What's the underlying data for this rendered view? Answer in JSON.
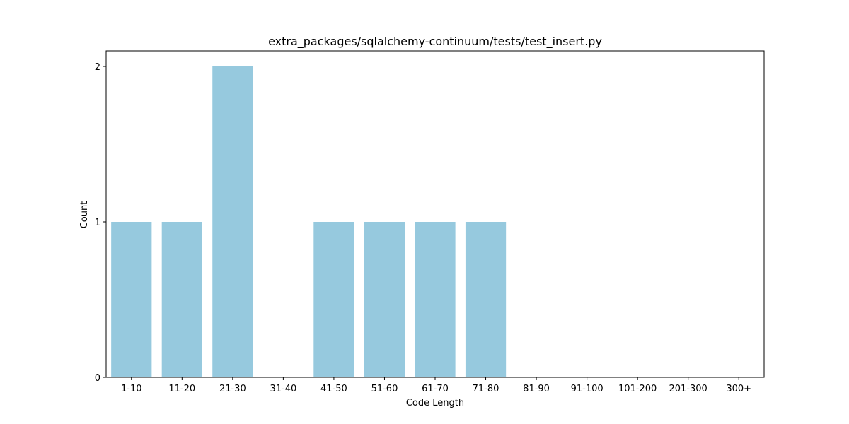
{
  "chart_data": {
    "type": "bar",
    "title": "extra_packages/sqlalchemy-continuum/tests/test_insert.py",
    "xlabel": "Code Length",
    "ylabel": "Count",
    "categories": [
      "1-10",
      "11-20",
      "21-30",
      "31-40",
      "41-50",
      "51-60",
      "61-70",
      "71-80",
      "81-90",
      "91-100",
      "101-200",
      "201-300",
      "300+"
    ],
    "values": [
      1,
      1,
      2,
      0,
      1,
      1,
      1,
      1,
      0,
      0,
      0,
      0,
      0
    ],
    "ylim": [
      0,
      2.1
    ],
    "yticks": [
      0,
      1,
      2
    ],
    "bar_color": "#96c9de",
    "grid": false,
    "legend": "none"
  }
}
